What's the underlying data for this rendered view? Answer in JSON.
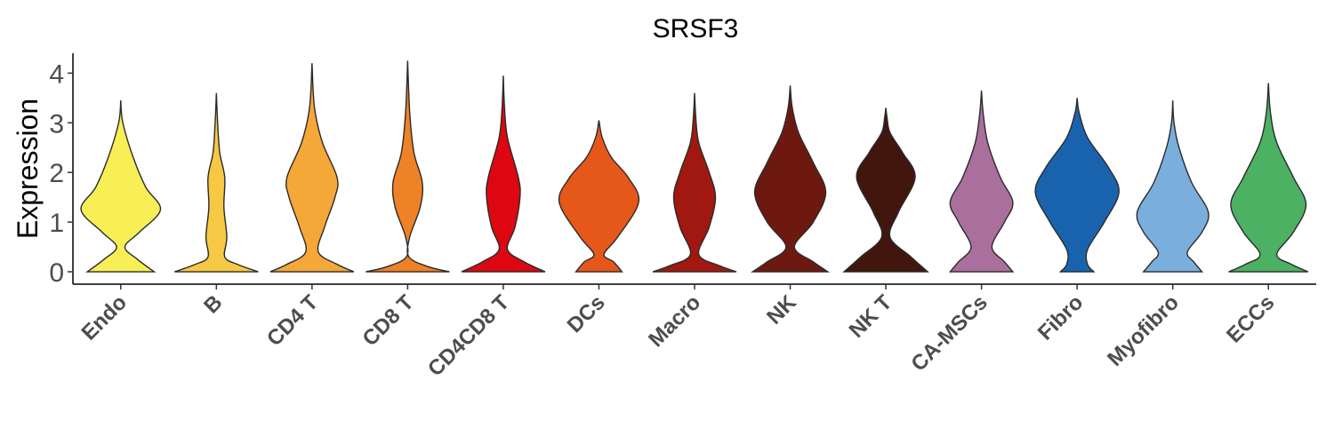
{
  "chart_data": {
    "type": "violin",
    "title": "SRSF3",
    "xlabel": "",
    "ylabel": "Expression",
    "ylim": [
      -0.25,
      4.4
    ],
    "yticks": [
      0,
      1,
      2,
      3,
      4
    ],
    "grid": false,
    "legend": "none",
    "categories": [
      "Endo",
      "B",
      "CD4 T",
      "CD8 T",
      "CD4CD8 T",
      "DCs",
      "Macro",
      "NK",
      "NK T",
      "CA-MSCs",
      "Fibro",
      "Myofibro",
      "ECCs"
    ],
    "colors": [
      "#f7ef55",
      "#f7c843",
      "#f5a738",
      "#ef8226",
      "#dc0710",
      "#e6571a",
      "#a01810",
      "#6e1910",
      "#40160d",
      "#aa6f9d",
      "#1963ae",
      "#7aafdd",
      "#4cb162"
    ],
    "series": [
      {
        "category": "Endo",
        "min": 0,
        "max": 3.45,
        "density": [
          [
            0,
            0.8
          ],
          [
            0.25,
            0.4
          ],
          [
            0.5,
            0.1
          ],
          [
            0.8,
            0.45
          ],
          [
            1.25,
            0.95
          ],
          [
            1.7,
            0.6
          ],
          [
            2.3,
            0.3
          ],
          [
            3.0,
            0.05
          ],
          [
            3.45,
            0
          ]
        ]
      },
      {
        "category": "B",
        "min": 0,
        "max": 3.6,
        "density": [
          [
            0,
            1.0
          ],
          [
            0.15,
            0.5
          ],
          [
            0.3,
            0.2
          ],
          [
            0.7,
            0.25
          ],
          [
            1.3,
            0.18
          ],
          [
            1.9,
            0.2
          ],
          [
            2.4,
            0.08
          ],
          [
            3.0,
            0.03
          ],
          [
            3.6,
            0
          ]
        ]
      },
      {
        "category": "CD4 T",
        "min": 0,
        "max": 4.2,
        "density": [
          [
            0,
            1.0
          ],
          [
            0.15,
            0.6
          ],
          [
            0.4,
            0.15
          ],
          [
            0.9,
            0.3
          ],
          [
            1.5,
            0.55
          ],
          [
            1.9,
            0.6
          ],
          [
            2.6,
            0.25
          ],
          [
            3.3,
            0.06
          ],
          [
            4.2,
            0
          ]
        ]
      },
      {
        "category": "CD8 T",
        "min": 0,
        "max": 4.25,
        "density": [
          [
            0,
            1.0
          ],
          [
            0.1,
            0.5
          ],
          [
            0.3,
            0.03
          ],
          [
            0.7,
            0.05
          ],
          [
            1.3,
            0.3
          ],
          [
            1.8,
            0.35
          ],
          [
            2.4,
            0.15
          ],
          [
            3.2,
            0.05
          ],
          [
            4.25,
            0
          ]
        ]
      },
      {
        "category": "CD4CD8 T",
        "min": 0,
        "max": 3.95,
        "density": [
          [
            0,
            1.0
          ],
          [
            0.2,
            0.5
          ],
          [
            0.45,
            0.1
          ],
          [
            0.9,
            0.28
          ],
          [
            1.5,
            0.4
          ],
          [
            1.9,
            0.36
          ],
          [
            2.7,
            0.1
          ],
          [
            3.3,
            0.03
          ],
          [
            3.95,
            0
          ]
        ]
      },
      {
        "category": "DCs",
        "min": 0,
        "max": 3.05,
        "density": [
          [
            0,
            0.55
          ],
          [
            0.2,
            0.35
          ],
          [
            0.35,
            0.12
          ],
          [
            0.7,
            0.45
          ],
          [
            1.4,
            0.95
          ],
          [
            1.9,
            0.7
          ],
          [
            2.3,
            0.3
          ],
          [
            2.7,
            0.08
          ],
          [
            3.05,
            0
          ]
        ]
      },
      {
        "category": "Macro",
        "min": 0,
        "max": 3.6,
        "density": [
          [
            0,
            1.0
          ],
          [
            0.12,
            0.6
          ],
          [
            0.35,
            0.1
          ],
          [
            0.9,
            0.35
          ],
          [
            1.5,
            0.5
          ],
          [
            2.0,
            0.35
          ],
          [
            2.6,
            0.1
          ],
          [
            3.1,
            0.03
          ],
          [
            3.6,
            0
          ]
        ]
      },
      {
        "category": "NK",
        "min": 0,
        "max": 3.75,
        "density": [
          [
            0,
            0.9
          ],
          [
            0.2,
            0.55
          ],
          [
            0.5,
            0.1
          ],
          [
            1.0,
            0.55
          ],
          [
            1.6,
            0.85
          ],
          [
            2.2,
            0.55
          ],
          [
            2.8,
            0.2
          ],
          [
            3.3,
            0.05
          ],
          [
            3.75,
            0
          ]
        ]
      },
      {
        "category": "NK T",
        "min": 0,
        "max": 3.3,
        "density": [
          [
            0,
            1.0
          ],
          [
            0.3,
            0.6
          ],
          [
            0.7,
            0.1
          ],
          [
            1.2,
            0.3
          ],
          [
            1.9,
            0.7
          ],
          [
            2.4,
            0.4
          ],
          [
            2.8,
            0.1
          ],
          [
            3.1,
            0.03
          ],
          [
            3.3,
            0
          ]
        ]
      },
      {
        "category": "CA-MSCs",
        "min": 0,
        "max": 3.65,
        "density": [
          [
            0,
            0.75
          ],
          [
            0.2,
            0.55
          ],
          [
            0.5,
            0.25
          ],
          [
            1.0,
            0.55
          ],
          [
            1.4,
            0.75
          ],
          [
            1.9,
            0.45
          ],
          [
            2.6,
            0.15
          ],
          [
            3.2,
            0.04
          ],
          [
            3.65,
            0
          ]
        ]
      },
      {
        "category": "Fibro",
        "min": 0,
        "max": 3.5,
        "density": [
          [
            0,
            0.4
          ],
          [
            0.15,
            0.25
          ],
          [
            0.45,
            0.25
          ],
          [
            1.0,
            0.65
          ],
          [
            1.6,
            1.0
          ],
          [
            2.1,
            0.75
          ],
          [
            2.7,
            0.25
          ],
          [
            3.2,
            0.05
          ],
          [
            3.5,
            0
          ]
        ]
      },
      {
        "category": "Myofibro",
        "min": 0,
        "max": 3.45,
        "density": [
          [
            0,
            0.7
          ],
          [
            0.2,
            0.5
          ],
          [
            0.4,
            0.35
          ],
          [
            0.8,
            0.7
          ],
          [
            1.2,
            0.85
          ],
          [
            1.8,
            0.45
          ],
          [
            2.5,
            0.15
          ],
          [
            3.0,
            0.03
          ],
          [
            3.45,
            0
          ]
        ]
      },
      {
        "category": "ECCs",
        "min": 0,
        "max": 3.8,
        "density": [
          [
            0,
            0.95
          ],
          [
            0.15,
            0.55
          ],
          [
            0.35,
            0.2
          ],
          [
            0.8,
            0.6
          ],
          [
            1.35,
            0.9
          ],
          [
            1.9,
            0.6
          ],
          [
            2.6,
            0.2
          ],
          [
            3.2,
            0.05
          ],
          [
            3.8,
            0
          ]
        ]
      }
    ]
  }
}
